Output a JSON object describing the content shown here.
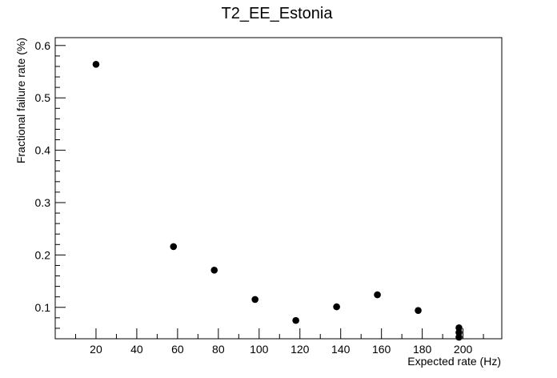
{
  "chart_data": {
    "type": "scatter",
    "title": "T2_EE_Estonia",
    "xlabel": "Expected rate (Hz)",
    "ylabel": "Fractional failure rate (%)",
    "xlim": [
      0,
      219
    ],
    "ylim": [
      0.04,
      0.615
    ],
    "xticks": [
      20,
      40,
      60,
      80,
      100,
      120,
      140,
      160,
      180,
      200
    ],
    "yticks": [
      0.1,
      0.2,
      0.3,
      0.4,
      0.5,
      0.6
    ],
    "ytick_labels": [
      "0.1",
      "0.2",
      "0.3",
      "0.4",
      "0.5",
      "0.6"
    ],
    "grid": false,
    "marker_color": "#000000",
    "points": [
      {
        "x": 20,
        "y": 0.564
      },
      {
        "x": 58,
        "y": 0.216
      },
      {
        "x": 78,
        "y": 0.171
      },
      {
        "x": 98,
        "y": 0.115
      },
      {
        "x": 118,
        "y": 0.075
      },
      {
        "x": 138,
        "y": 0.101
      },
      {
        "x": 158,
        "y": 0.124
      },
      {
        "x": 178,
        "y": 0.094
      },
      {
        "x": 198,
        "y": 0.061
      },
      {
        "x": 198,
        "y": 0.052
      },
      {
        "x": 198,
        "y": 0.043
      }
    ]
  }
}
